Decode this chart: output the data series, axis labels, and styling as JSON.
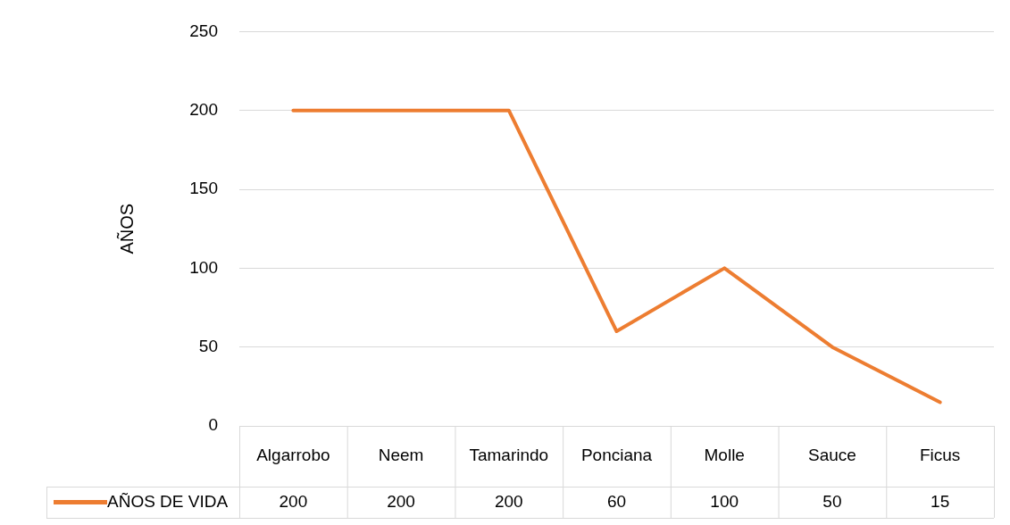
{
  "chart_data": {
    "type": "line",
    "ylabel": "AÑOS",
    "categories": [
      "Algarrobo",
      "Neem",
      "Tamarindo",
      "Ponciana",
      "Molle",
      "Sauce",
      "Ficus"
    ],
    "series": [
      {
        "name": "AÑOS DE VIDA",
        "color": "#ed7d31",
        "values": [
          200,
          200,
          200,
          60,
          100,
          50,
          15
        ]
      }
    ],
    "ylim": [
      0,
      250
    ],
    "yticks": [
      0,
      50,
      100,
      150,
      200,
      250
    ],
    "grid": "y",
    "legend": "bottom",
    "data_labels": true,
    "marker": "none",
    "line_style": "solid"
  }
}
